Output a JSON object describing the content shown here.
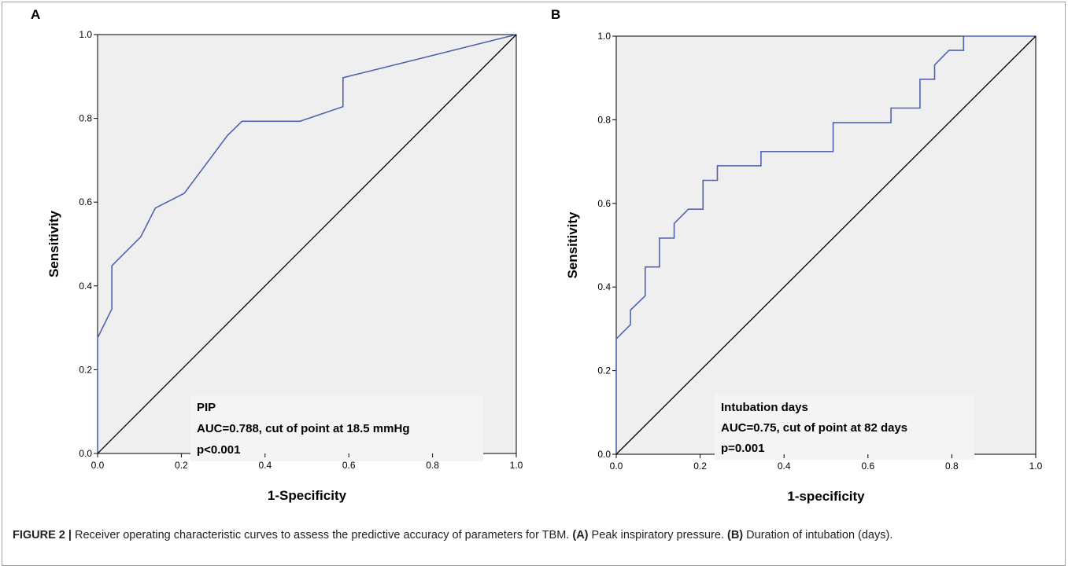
{
  "chart_data": [
    {
      "type": "line",
      "panel": "A",
      "xlabel": "1-Specificity",
      "ylabel": "Sensitivity",
      "xlim": [
        0,
        1
      ],
      "ylim": [
        0,
        1
      ],
      "xticks": [
        "0.0",
        "0.2",
        "0.4",
        "0.6",
        "0.8",
        "1.0"
      ],
      "yticks": [
        "0.0",
        "0.2",
        "0.4",
        "0.6",
        "0.8",
        "1.0"
      ],
      "annotations": [
        "PIP",
        "AUC=0.788, cut of point at 18.5 mmHg",
        "p<0.001"
      ],
      "series": [
        {
          "x": [
            0,
            0,
            0.034,
            0.034,
            0.069,
            0.103,
            0.138,
            0.207,
            0.31,
            0.345,
            0.483,
            0.586,
            0.586,
            1.0
          ],
          "y": [
            0,
            0.276,
            0.345,
            0.448,
            0.483,
            0.517,
            0.586,
            0.621,
            0.759,
            0.793,
            0.793,
            0.828,
            0.897,
            1.0
          ],
          "color": "#4f63b1"
        },
        {
          "x": [
            0,
            1
          ],
          "y": [
            0,
            1
          ],
          "color": "#000000"
        }
      ]
    },
    {
      "type": "line",
      "panel": "B",
      "xlabel": "1-specificity",
      "ylabel": "Sensitivity",
      "xlim": [
        0,
        1
      ],
      "ylim": [
        0,
        1
      ],
      "xticks": [
        "0.0",
        "0.2",
        "0.4",
        "0.6",
        "0.8",
        "1.0"
      ],
      "yticks": [
        "0.0",
        "0.2",
        "0.4",
        "0.6",
        "0.8",
        "1.0"
      ],
      "annotations": [
        "Intubation days",
        "AUC=0.75, cut of point at 82 days",
        "p=0.001"
      ],
      "series": [
        {
          "x": [
            0,
            0,
            0.034,
            0.034,
            0.069,
            0.069,
            0.103,
            0.103,
            0.138,
            0.138,
            0.172,
            0.207,
            0.207,
            0.241,
            0.241,
            0.345,
            0.345,
            0.517,
            0.517,
            0.655,
            0.655,
            0.724,
            0.724,
            0.759,
            0.759,
            0.793,
            0.793,
            0.828,
            0.828,
            1.0
          ],
          "y": [
            0,
            0.276,
            0.31,
            0.345,
            0.379,
            0.448,
            0.448,
            0.517,
            0.517,
            0.552,
            0.586,
            0.586,
            0.655,
            0.655,
            0.69,
            0.69,
            0.724,
            0.724,
            0.793,
            0.793,
            0.828,
            0.828,
            0.897,
            0.897,
            0.931,
            0.966,
            0.966,
            0.966,
            1.0,
            1.0
          ],
          "color": "#4f63b1"
        },
        {
          "x": [
            0,
            1
          ],
          "y": [
            0,
            1
          ],
          "color": "#000000"
        }
      ]
    }
  ],
  "caption": {
    "label": "FIGURE 2 |",
    "text1": " Receiver operating characteristic curves to assess the predictive accuracy of parameters for TBM. ",
    "part_a": "(A)",
    "text2": " Peak inspiratory pressure. ",
    "part_b": "(B)",
    "text3": " Duration of intubation (days)."
  },
  "colors": {
    "plot_background": "#efefef",
    "roc_curve": "#4f63b1",
    "reference_line": "#000000"
  }
}
